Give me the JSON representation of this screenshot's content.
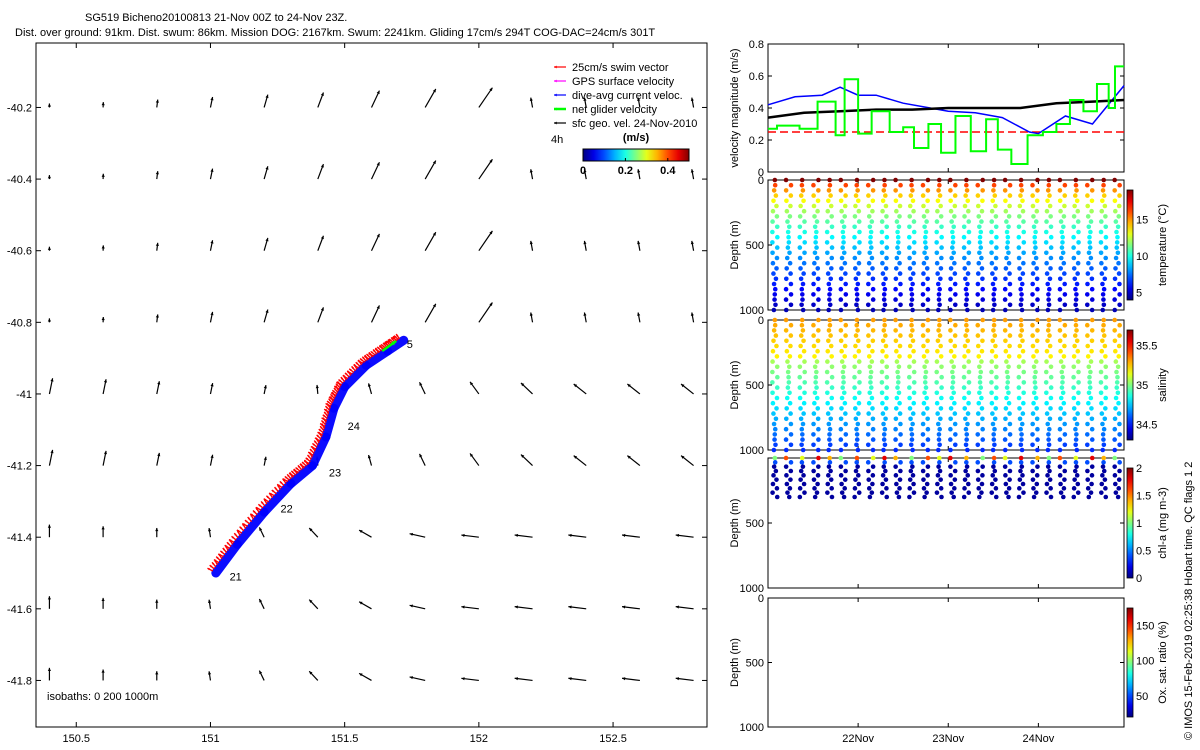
{
  "header": {
    "title_line1": "SG519 Bicheno20100813 21-Nov 00Z to 24-Nov 23Z.",
    "title_line2": "Dist. over ground: 91km. Dist. swum: 86km. Mission DOG: 2167km. Swum: 2241km. Gliding 17cm/s 294T COG-DAC=24cm/s 301T"
  },
  "side_note": "© IMOS 15-Feb-2019 02:25:38 Hobart time. QC flags 1  2",
  "colors": {
    "swim": "#ff0000",
    "gps": "#ff00ff",
    "dac": "#0000ff",
    "net": "#00ff00",
    "geo": "#000000",
    "threshold": "#ff0000",
    "black_line": "#000000"
  },
  "chart_data": [
    {
      "type": "scatter",
      "id": "map",
      "xlim": [
        150.35,
        152.85
      ],
      "ylim": [
        -41.93,
        -40.02
      ],
      "xticks": [
        150.5,
        151,
        151.5,
        152,
        152.5
      ],
      "xtick_labels": [
        "150.5",
        "151",
        "151.5",
        "152",
        "152.5"
      ],
      "yticks": [
        -40.2,
        -40.4,
        -40.6,
        -40.8,
        -41,
        -41.2,
        -41.4,
        -41.6,
        -41.8
      ],
      "ytick_labels": [
        "-40.2",
        "-40.4",
        "-40.6",
        "-40.8",
        "-41",
        "-41.2",
        "-41.4",
        "-41.6",
        "-41.8"
      ],
      "legend": {
        "position": "top-right",
        "items": [
          {
            "label": "25cm/s swim vector",
            "color": "#ff0000"
          },
          {
            "label": "GPS surface velocity",
            "color": "#ff00ff"
          },
          {
            "label": "dive-avg current veloc.",
            "color": "#0000ff"
          },
          {
            "label": "net glider velocity",
            "color": "#00ff00"
          },
          {
            "label": "sfc geo. vel. 24-Nov-2010",
            "color": "#000000"
          }
        ]
      },
      "colorbar": {
        "label_left": "4h",
        "unit": "(m/s)",
        "ticks": [
          "0",
          "0.2",
          "0.4"
        ],
        "range": [
          0,
          0.5
        ]
      },
      "isobaths_label": "isobaths: 0   200   1000m",
      "track": {
        "lon": [
          151.02,
          151.1,
          151.2,
          151.3,
          151.38,
          151.43,
          151.46,
          151.5,
          151.58,
          151.66,
          151.72
        ],
        "lat": [
          -41.5,
          -41.42,
          -41.33,
          -41.25,
          -41.2,
          -41.12,
          -41.04,
          -40.98,
          -40.92,
          -40.88,
          -40.85
        ]
      },
      "day_labels": [
        {
          "label": "21",
          "lon": 151.06,
          "lat": -41.51
        },
        {
          "label": "22",
          "lon": 151.25,
          "lat": -41.32
        },
        {
          "label": "23",
          "lon": 151.43,
          "lat": -41.22
        },
        {
          "label": "24",
          "lon": 151.5,
          "lat": -41.09
        },
        {
          "label": "5",
          "lon": 151.72,
          "lat": -40.86
        }
      ],
      "net_vector": {
        "lon": 151.64,
        "lat": -40.88,
        "u": 0.08,
        "v": 0.05
      },
      "geo_field": {
        "lons": [
          150.4,
          150.6,
          150.8,
          151.0,
          151.2,
          151.4,
          151.6,
          151.8,
          152.0,
          152.2,
          152.4,
          152.6,
          152.8
        ],
        "lats": [
          -40.2,
          -40.4,
          -40.6,
          -40.8,
          -41.0,
          -41.2,
          -41.4,
          -41.6,
          -41.8
        ]
      }
    },
    {
      "type": "line",
      "id": "velocity",
      "ylabel": "velocity magnitude (m/s)",
      "ylim": [
        0,
        0.8
      ],
      "yticks": [
        0,
        0.2,
        0.4,
        0.6,
        0.8
      ],
      "ytick_labels": [
        "0",
        "0.2",
        "0.4",
        "0.6",
        "0.8"
      ],
      "xlim": [
        21.0,
        24.95
      ],
      "threshold": 0.25,
      "series": [
        {
          "color": "#0000ff",
          "x": [
            21.0,
            21.3,
            21.6,
            21.8,
            22.0,
            22.2,
            22.5,
            22.8,
            23.0,
            23.3,
            23.6,
            23.9,
            24.0,
            24.3,
            24.6,
            24.95
          ],
          "y": [
            0.42,
            0.47,
            0.48,
            0.53,
            0.48,
            0.48,
            0.43,
            0.4,
            0.38,
            0.37,
            0.34,
            0.25,
            0.24,
            0.35,
            0.3,
            0.54
          ]
        },
        {
          "color": "#000000",
          "x": [
            21.0,
            21.4,
            21.8,
            22.2,
            22.6,
            23.0,
            23.4,
            23.8,
            24.2,
            24.6,
            24.95
          ],
          "y": [
            0.34,
            0.37,
            0.38,
            0.39,
            0.39,
            0.4,
            0.4,
            0.4,
            0.43,
            0.44,
            0.45
          ]
        },
        {
          "color": "#00ff00",
          "x": [
            21.0,
            21.1,
            21.1,
            21.35,
            21.35,
            21.55,
            21.55,
            21.75,
            21.75,
            21.85,
            21.85,
            22.0,
            22.0,
            22.15,
            22.15,
            22.35,
            22.35,
            22.5,
            22.5,
            22.62,
            22.62,
            22.78,
            22.78,
            22.92,
            22.92,
            23.08,
            23.08,
            23.25,
            23.25,
            23.42,
            23.42,
            23.55,
            23.55,
            23.7,
            23.7,
            23.88,
            23.88,
            24.05,
            24.05,
            24.2,
            24.2,
            24.35,
            24.35,
            24.5,
            24.5,
            24.65,
            24.65,
            24.78,
            24.78,
            24.85,
            24.85,
            24.95
          ],
          "y": [
            0.27,
            0.27,
            0.29,
            0.29,
            0.27,
            0.27,
            0.44,
            0.44,
            0.23,
            0.23,
            0.58,
            0.58,
            0.24,
            0.24,
            0.38,
            0.38,
            0.25,
            0.25,
            0.28,
            0.28,
            0.15,
            0.15,
            0.3,
            0.3,
            0.12,
            0.12,
            0.35,
            0.35,
            0.13,
            0.13,
            0.33,
            0.33,
            0.14,
            0.14,
            0.05,
            0.05,
            0.23,
            0.23,
            0.25,
            0.25,
            0.3,
            0.3,
            0.45,
            0.45,
            0.38,
            0.38,
            0.55,
            0.55,
            0.4,
            0.4,
            0.66,
            0.66
          ]
        }
      ]
    },
    {
      "type": "scatter",
      "id": "temperature",
      "ylabel": "Depth (m)",
      "ylim": [
        1000,
        0
      ],
      "yticks": [
        0,
        500,
        1000
      ],
      "ytick_labels": [
        "0",
        "500",
        "1000"
      ],
      "xlim": [
        21.0,
        24.95
      ],
      "colorbar": {
        "label": "temperature (°C)",
        "ticks": [
          "5",
          "10",
          "15"
        ],
        "range": [
          4,
          19
        ]
      },
      "dives": 26,
      "max_depth": 1000
    },
    {
      "type": "scatter",
      "id": "salinity",
      "ylabel": "Depth (m)",
      "ylim": [
        1000,
        0
      ],
      "yticks": [
        0,
        500,
        1000
      ],
      "ytick_labels": [
        "0",
        "500",
        "1000"
      ],
      "xlim": [
        21.0,
        24.95
      ],
      "colorbar": {
        "label": "salinity",
        "ticks": [
          "34.5",
          "35",
          "35.5"
        ],
        "range": [
          34.3,
          35.7
        ]
      },
      "dives": 26,
      "max_depth": 1000
    },
    {
      "type": "scatter",
      "id": "chla",
      "ylabel": "Depth (m)",
      "ylim": [
        1000,
        0
      ],
      "yticks": [
        500,
        1000
      ],
      "ytick_labels": [
        "500",
        "1000"
      ],
      "xlim": [
        21.0,
        24.95
      ],
      "colorbar": {
        "label": "chl-a (mg m-3)",
        "ticks": [
          "0",
          "0.5",
          "1",
          "1.5",
          "2"
        ],
        "range": [
          0,
          2
        ]
      },
      "dives": 26,
      "max_depth": 300
    },
    {
      "type": "scatter",
      "id": "oxygen",
      "ylabel": "Depth (m)",
      "ylim": [
        1000,
        0
      ],
      "yticks": [
        0,
        500,
        1000
      ],
      "ytick_labels": [
        "0",
        "500",
        "1000"
      ],
      "xlim": [
        21.0,
        24.95
      ],
      "xticks": [
        22,
        23,
        24
      ],
      "xtick_labels": [
        "22Nov",
        "23Nov",
        "24Nov"
      ],
      "colorbar": {
        "label": "Ox. sat. ratio (%)",
        "ticks": [
          "50",
          "100",
          "150"
        ],
        "range": [
          20,
          175
        ]
      }
    }
  ]
}
